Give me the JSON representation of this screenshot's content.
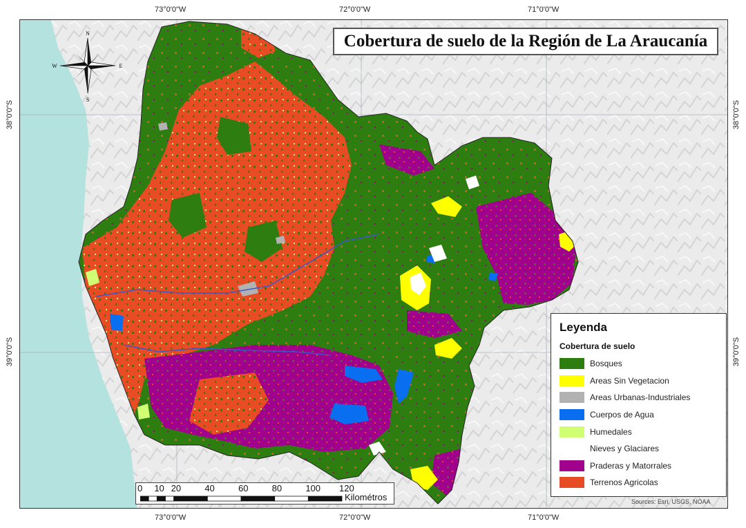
{
  "title": "Cobertura de suelo de la Región de La Araucanía",
  "coordinates": {
    "top": [
      "73°0'0\"W",
      "72°0'0\"W",
      "71°0'0\"W"
    ],
    "bottom": [
      "73°0'0\"W",
      "72°0'0\"W",
      "71°0'0\"W"
    ],
    "left": [
      "38°0'0\"S",
      "39°0'0\"S"
    ],
    "right": [
      "38°0'0\"S",
      "39°0'0\"S"
    ]
  },
  "compass": {
    "n": "N",
    "s": "S",
    "e": "E",
    "w": "W"
  },
  "legend": {
    "title": "Leyenda",
    "subtitle": "Cobertura de suelo",
    "items": [
      {
        "label": "Bosques",
        "color": "#2e7d10"
      },
      {
        "label": "Areas Sin Vegetacion",
        "color": "#ffff00"
      },
      {
        "label": "Areas Urbanas-Industriales",
        "color": "#b2b2b2"
      },
      {
        "label": "Cuerpos de Agua",
        "color": "#0a6ef0"
      },
      {
        "label": "Humedales",
        "color": "#d1ff73"
      },
      {
        "label": "Nieves y Glaciares",
        "color": "#ffffff"
      },
      {
        "label": "Praderas y Matorrales",
        "color": "#a0008c"
      },
      {
        "label": "Terrenos Agricolas",
        "color": "#e84c24"
      }
    ]
  },
  "scalebar": {
    "labels": [
      "0",
      "10",
      "20",
      "40",
      "60",
      "80",
      "100",
      "120"
    ],
    "unit": "Kilométros"
  },
  "sources": "Sources: Esri, USGS, NOAA"
}
